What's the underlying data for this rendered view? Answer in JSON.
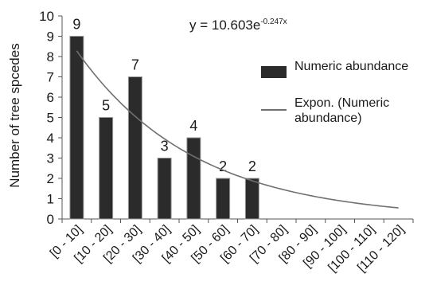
{
  "chart_data": {
    "type": "bar",
    "categories": [
      "[0 - 10]",
      "[10 - 20]",
      "[20 - 30]",
      "[30 - 40]",
      "[40 - 50]",
      "[50 - 60]",
      "[60 - 70]",
      "[70 - 80]",
      "[80 - 90]",
      "[90 - 100]",
      "[100 - 110]",
      "[110 - 120]"
    ],
    "series": [
      {
        "name": "Numeric abundance",
        "values": [
          9,
          5,
          7,
          3,
          4,
          2,
          2,
          null,
          null,
          null,
          null,
          null
        ]
      }
    ],
    "data_labels": [
      "9",
      "5",
      "7",
      "3",
      "4",
      "2",
      "2"
    ],
    "trendline": {
      "name": "Expon. (Numeric abundance)",
      "equation": "y = 10.603e",
      "exponent": "-0.247x",
      "a": 10.603,
      "b": -0.247
    },
    "ylabel": "Number of tree spcedes",
    "xlabel": "",
    "ylim": [
      0,
      10
    ],
    "yticks": [
      0,
      1,
      2,
      3,
      4,
      5,
      6,
      7,
      8,
      9,
      10
    ],
    "grid": false,
    "legend_position": "right",
    "colors": {
      "bar": "#2b2b2b",
      "bar_edge": "#9a9a9a",
      "trendline": "#707070",
      "axis": "#555555"
    }
  }
}
